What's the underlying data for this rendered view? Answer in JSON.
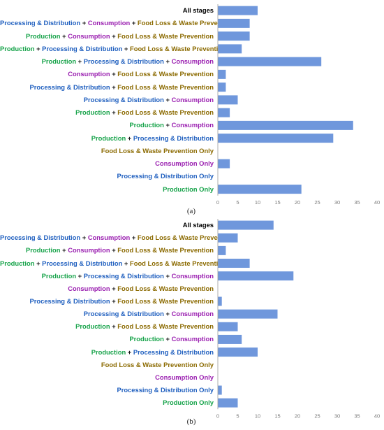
{
  "colors": {
    "bar": "#6f97dc",
    "axis": "#9a9a9a",
    "tick_label": "#7a7a7a",
    "Production": "#17a34a",
    "Processing & Distribution": "#1f5fbf",
    "Consumption": "#9a1fb0",
    "Food Loss & Waste Prevention": "#8b6a00",
    "All stages": "#000000",
    "plus": "#1b1b1b"
  },
  "chart_data": [
    {
      "type": "bar",
      "orientation": "horizontal",
      "caption": "(a)",
      "categories": [
        [
          {
            "t": "All stages",
            "c": "All stages"
          }
        ],
        [
          {
            "t": "Processing & Distribution",
            "c": "Processing & Distribution"
          },
          {
            "t": " + "
          },
          {
            "t": "Consumption",
            "c": "Consumption"
          },
          {
            "t": " + "
          },
          {
            "t": "Food Loss & Waste Prevention",
            "c": "Food Loss & Waste Prevention"
          }
        ],
        [
          {
            "t": "Production",
            "c": "Production"
          },
          {
            "t": " + "
          },
          {
            "t": "Consumption",
            "c": "Consumption"
          },
          {
            "t": " + "
          },
          {
            "t": "Food Loss & Waste Prevention",
            "c": "Food Loss & Waste Prevention"
          }
        ],
        [
          {
            "t": "Production",
            "c": "Production"
          },
          {
            "t": " + "
          },
          {
            "t": "Processing & Distribution",
            "c": "Processing & Distribution"
          },
          {
            "t": " + "
          },
          {
            "t": "Food Loss & Waste Prevention",
            "c": "Food Loss & Waste Prevention"
          }
        ],
        [
          {
            "t": "Production",
            "c": "Production"
          },
          {
            "t": " + "
          },
          {
            "t": "Processing & Distribution",
            "c": "Processing & Distribution"
          },
          {
            "t": " + "
          },
          {
            "t": "Consumption",
            "c": "Consumption"
          }
        ],
        [
          {
            "t": "Consumption",
            "c": "Consumption"
          },
          {
            "t": " + "
          },
          {
            "t": "Food Loss & Waste Prevention",
            "c": "Food Loss & Waste Prevention"
          }
        ],
        [
          {
            "t": "Processing & Distribution",
            "c": "Processing & Distribution"
          },
          {
            "t": " + "
          },
          {
            "t": "Food Loss & Waste Prevention",
            "c": "Food Loss & Waste Prevention"
          }
        ],
        [
          {
            "t": "Processing & Distribution",
            "c": "Processing & Distribution"
          },
          {
            "t": " + "
          },
          {
            "t": "Consumption",
            "c": "Consumption"
          }
        ],
        [
          {
            "t": "Production",
            "c": "Production"
          },
          {
            "t": " + "
          },
          {
            "t": "Food Loss & Waste Prevention",
            "c": "Food Loss & Waste Prevention"
          }
        ],
        [
          {
            "t": "Production",
            "c": "Production"
          },
          {
            "t": " + "
          },
          {
            "t": "Consumption",
            "c": "Consumption"
          }
        ],
        [
          {
            "t": "Production",
            "c": "Production"
          },
          {
            "t": " + "
          },
          {
            "t": "Processing & Distribution",
            "c": "Processing & Distribution"
          }
        ],
        [
          {
            "t": "Food Loss & Waste Prevention Only",
            "c": "Food Loss & Waste Prevention"
          }
        ],
        [
          {
            "t": "Consumption Only",
            "c": "Consumption"
          }
        ],
        [
          {
            "t": "Processing & Distribution Only",
            "c": "Processing & Distribution"
          }
        ],
        [
          {
            "t": "Production Only",
            "c": "Production"
          }
        ]
      ],
      "values": [
        10,
        8,
        8,
        6,
        26,
        2,
        2,
        5,
        3,
        34,
        29,
        0,
        3,
        0,
        21
      ],
      "xlim": [
        0,
        40
      ],
      "xticks": [
        0,
        5,
        10,
        15,
        20,
        25,
        30,
        35,
        40
      ],
      "grid": false,
      "title": "",
      "xlabel": "",
      "ylabel": ""
    },
    {
      "type": "bar",
      "orientation": "horizontal",
      "caption": "(b)",
      "categories": [
        [
          {
            "t": "All stages",
            "c": "All stages"
          }
        ],
        [
          {
            "t": "Processing & Distribution",
            "c": "Processing & Distribution"
          },
          {
            "t": " + "
          },
          {
            "t": "Consumption",
            "c": "Consumption"
          },
          {
            "t": " + "
          },
          {
            "t": "Food Loss & Waste Prevention",
            "c": "Food Loss & Waste Prevention"
          }
        ],
        [
          {
            "t": "Production",
            "c": "Production"
          },
          {
            "t": " + "
          },
          {
            "t": "Consumption",
            "c": "Consumption"
          },
          {
            "t": " + "
          },
          {
            "t": "Food Loss & Waste Prevention",
            "c": "Food Loss & Waste Prevention"
          }
        ],
        [
          {
            "t": "Production",
            "c": "Production"
          },
          {
            "t": " + "
          },
          {
            "t": "Processing & Distribution",
            "c": "Processing & Distribution"
          },
          {
            "t": " + "
          },
          {
            "t": "Food Loss & Waste Prevention",
            "c": "Food Loss & Waste Prevention"
          }
        ],
        [
          {
            "t": "Production",
            "c": "Production"
          },
          {
            "t": " + "
          },
          {
            "t": "Processing & Distribution",
            "c": "Processing & Distribution"
          },
          {
            "t": " + "
          },
          {
            "t": "Consumption",
            "c": "Consumption"
          }
        ],
        [
          {
            "t": "Consumption",
            "c": "Consumption"
          },
          {
            "t": " + "
          },
          {
            "t": "Food Loss & Waste Prevention",
            "c": "Food Loss & Waste Prevention"
          }
        ],
        [
          {
            "t": "Processing & Distribution",
            "c": "Processing & Distribution"
          },
          {
            "t": " + "
          },
          {
            "t": "Food Loss & Waste Prevention",
            "c": "Food Loss & Waste Prevention"
          }
        ],
        [
          {
            "t": "Processing & Distribution",
            "c": "Processing & Distribution"
          },
          {
            "t": " + "
          },
          {
            "t": "Consumption",
            "c": "Consumption"
          }
        ],
        [
          {
            "t": "Production",
            "c": "Production"
          },
          {
            "t": " + "
          },
          {
            "t": "Food Loss & Waste Prevention",
            "c": "Food Loss & Waste Prevention"
          }
        ],
        [
          {
            "t": "Production",
            "c": "Production"
          },
          {
            "t": " + "
          },
          {
            "t": "Consumption",
            "c": "Consumption"
          }
        ],
        [
          {
            "t": "Production",
            "c": "Production"
          },
          {
            "t": " + "
          },
          {
            "t": "Processing & Distribution",
            "c": "Processing & Distribution"
          }
        ],
        [
          {
            "t": "Food Loss & Waste Prevention Only",
            "c": "Food Loss & Waste Prevention"
          }
        ],
        [
          {
            "t": "Consumption Only",
            "c": "Consumption"
          }
        ],
        [
          {
            "t": "Processing & Distribution Only",
            "c": "Processing & Distribution"
          }
        ],
        [
          {
            "t": "Production Only",
            "c": "Production"
          }
        ]
      ],
      "values": [
        14,
        5,
        2,
        8,
        19,
        0,
        1,
        15,
        5,
        6,
        10,
        0,
        0,
        1,
        5
      ],
      "xlim": [
        0,
        40
      ],
      "xticks": [
        0,
        5,
        10,
        15,
        20,
        25,
        30,
        35,
        40
      ],
      "grid": false,
      "title": "",
      "xlabel": "",
      "ylabel": ""
    }
  ]
}
